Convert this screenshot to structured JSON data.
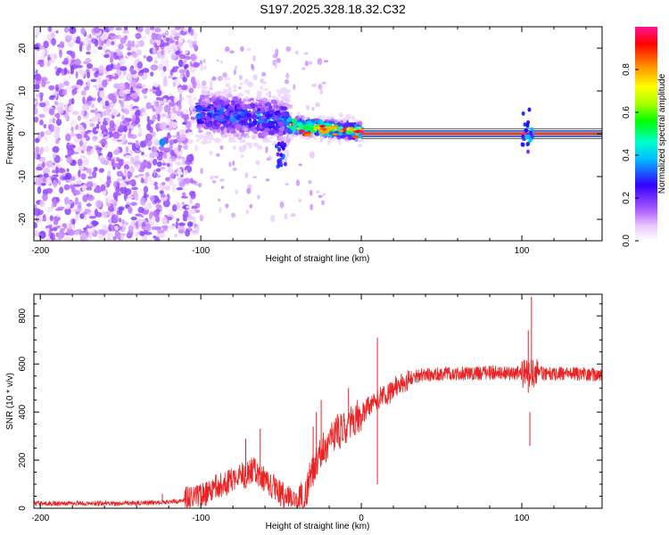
{
  "title": "S197.2025.328.18.32.C32",
  "chart_data": [
    {
      "type": "heatmap",
      "name": "spectrogram",
      "xlabel": "Height of straight line (km)",
      "ylabel": "Frequency (Hz)",
      "xlim": [
        -204,
        150
      ],
      "ylim": [
        -25,
        25
      ],
      "xticks": [
        -200,
        -100,
        0,
        100
      ],
      "yticks": [
        -20,
        -10,
        0,
        10,
        20
      ],
      "colorbar": {
        "label": "Normalized spectral amplitude",
        "range": [
          0.0,
          1.0
        ],
        "ticks": [
          0.0,
          0.2,
          0.4,
          0.6,
          0.8
        ],
        "colormap": [
          "#ffffff",
          "#cc66ff",
          "#3300ff",
          "#00ffff",
          "#00ff00",
          "#ffff00",
          "#ff0000",
          "#ff1493"
        ]
      },
      "regions": [
        {
          "x": [
            -204,
            -102
          ],
          "freq_spread": [
            -25,
            25
          ],
          "amplitude": 0.15,
          "desc": "broadband noise"
        },
        {
          "x": [
            -102,
            -45
          ],
          "freq_center": [
            5,
            3
          ],
          "freq_spread": 4,
          "amplitude": 0.3
        },
        {
          "x": [
            -45,
            0
          ],
          "freq_center": [
            2,
            0.5
          ],
          "freq_spread": 1.5,
          "amplitude": 0.7
        },
        {
          "x": [
            0,
            150
          ],
          "freq_center": [
            0,
            0
          ],
          "freq_spread": 0.5,
          "amplitude": 1.0,
          "desc": "narrow carrier line"
        },
        {
          "x": [
            100,
            107
          ],
          "freq_center": [
            0,
            0
          ],
          "freq_spread": 2,
          "amplitude": 0.3
        }
      ],
      "highlights": [
        {
          "x": -124,
          "freq": -2,
          "amplitude": 0.35
        }
      ]
    },
    {
      "type": "line",
      "name": "snr",
      "xlabel": "Height of straight line (km)",
      "ylabel": "SNR (10 * v/v)",
      "xlim": [
        -204,
        150
      ],
      "ylim": [
        0,
        890
      ],
      "xticks": [
        -200,
        -100,
        0,
        100
      ],
      "yticks": [
        0,
        200,
        400,
        600,
        800
      ],
      "color": "#ee2222",
      "series": [
        {
          "name": "SNR",
          "x": [
            -204,
            -150,
            -120,
            -105,
            -95,
            -90,
            -85,
            -80,
            -75,
            -72,
            -70,
            -68,
            -65,
            -60,
            -55,
            -50,
            -45,
            -42,
            -38,
            -35,
            -32,
            -30,
            -28,
            -25,
            -22,
            -20,
            -18,
            -15,
            -12,
            -10,
            -8,
            -6,
            -4,
            -2,
            0,
            2,
            4,
            6,
            8,
            10,
            12,
            15,
            18,
            20,
            25,
            30,
            35,
            40,
            50,
            60,
            70,
            80,
            90,
            95,
            100,
            103,
            105,
            106,
            107,
            108,
            110,
            115,
            120,
            130,
            140,
            150
          ],
          "y": [
            20,
            20,
            25,
            40,
            60,
            90,
            100,
            120,
            140,
            130,
            150,
            160,
            150,
            120,
            90,
            60,
            40,
            30,
            40,
            60,
            120,
            160,
            200,
            230,
            260,
            280,
            300,
            320,
            320,
            330,
            350,
            360,
            370,
            380,
            390,
            400,
            420,
            440,
            440,
            450,
            460,
            470,
            480,
            500,
            520,
            540,
            550,
            555,
            560,
            560,
            560,
            565,
            560,
            560,
            560,
            560,
            400,
            860,
            290,
            560,
            560,
            560,
            560,
            560,
            555,
            555
          ]
        }
      ],
      "spikes": [
        {
          "x": -124,
          "y": 60
        },
        {
          "x": -72,
          "y": 290
        },
        {
          "x": -63,
          "y": 330
        },
        {
          "x": -30,
          "y": 340
        },
        {
          "x": -28,
          "y": 400
        },
        {
          "x": -25,
          "y": 450
        },
        {
          "x": -8,
          "y": 500
        },
        {
          "x": 10,
          "y": 710
        },
        {
          "x": 10,
          "y": 100
        },
        {
          "x": 104,
          "y": 740
        },
        {
          "x": 105,
          "y": 260
        },
        {
          "x": 106,
          "y": 880
        }
      ]
    }
  ]
}
